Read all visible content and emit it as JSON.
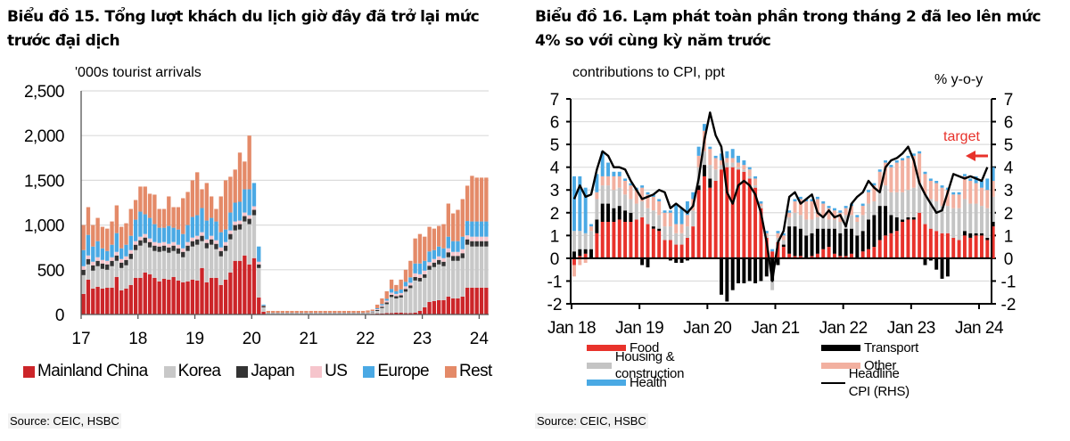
{
  "chart_data": [
    {
      "id": "chart15",
      "type": "bar",
      "stacked": true,
      "title": "Biểu đồ 15. Tổng lượt khách du lịch giờ đây đã trở lại mức trước đại dịch",
      "ylabel": "'000s tourist arrivals",
      "xlabel": "",
      "ylim": [
        0,
        2500
      ],
      "yticks": [
        0,
        500,
        1000,
        1500,
        2000,
        2500
      ],
      "ytick_labels": [
        "0",
        "500",
        "1,000",
        "1,500",
        "2,000",
        "2,500"
      ],
      "xtick_labels": [
        "17",
        "18",
        "19",
        "20",
        "21",
        "22",
        "23",
        "24"
      ],
      "grid": true,
      "legend_position": "bottom",
      "frequency": "monthly",
      "start": "2017-01",
      "series_order": [
        "Mainland China",
        "Korea",
        "Japan",
        "US",
        "Europe",
        "Rest"
      ],
      "colors": {
        "Mainland China": "#cc2529",
        "Korea": "#c8c8c8",
        "Japan": "#333333",
        "US": "#f6c5cc",
        "Europe": "#4aa9e4",
        "Rest": "#e48a68"
      },
      "totals": [
        1000,
        1200,
        1000,
        1080,
        980,
        960,
        1040,
        1220,
        980,
        1020,
        1180,
        1280,
        1430,
        1430,
        1350,
        1340,
        1180,
        1180,
        1320,
        1200,
        1200,
        1300,
        1370,
        1500,
        1590,
        1400,
        1470,
        1320,
        1180,
        1320,
        1500,
        1540,
        1620,
        1810,
        1710,
        2000,
        1250,
        450,
        60,
        40,
        40,
        40,
        40,
        40,
        40,
        40,
        40,
        40,
        40,
        40,
        40,
        40,
        40,
        40,
        40,
        40,
        40,
        40,
        40,
        40,
        45,
        55,
        110,
        180,
        260,
        390,
        330,
        390,
        500,
        600,
        850,
        900,
        870,
        980,
        960,
        990,
        1010,
        1240,
        1130,
        1170,
        1290,
        1440,
        1550,
        1530,
        1530,
        1530
      ],
      "china": [
        230,
        390,
        290,
        310,
        290,
        300,
        300,
        420,
        270,
        290,
        330,
        410,
        410,
        470,
        450,
        410,
        370,
        400,
        390,
        420,
        380,
        360,
        370,
        390,
        380,
        520,
        360,
        410,
        410,
        330,
        390,
        470,
        600,
        600,
        660,
        560,
        630,
        190,
        30,
        5,
        5,
        5,
        5,
        5,
        5,
        5,
        5,
        5,
        5,
        5,
        5,
        5,
        5,
        5,
        5,
        5,
        5,
        5,
        5,
        5,
        5,
        8,
        10,
        12,
        15,
        15,
        20,
        20,
        15,
        15,
        20,
        40,
        80,
        140,
        150,
        160,
        160,
        200,
        180,
        180,
        200,
        300,
        300,
        300,
        300,
        300
      ],
      "korea": [
        210,
        170,
        200,
        230,
        220,
        200,
        240,
        180,
        250,
        260,
        290,
        310,
        360,
        330,
        300,
        300,
        330,
        310,
        300,
        290,
        300,
        280,
        340,
        370,
        400,
        300,
        380,
        370,
        320,
        320,
        320,
        370,
        340,
        350,
        380,
        450,
        480,
        330,
        50,
        5,
        5,
        5,
        5,
        5,
        5,
        5,
        5,
        5,
        5,
        5,
        5,
        5,
        5,
        5,
        5,
        5,
        5,
        5,
        5,
        5,
        8,
        15,
        30,
        60,
        100,
        180,
        160,
        170,
        240,
        280,
        360,
        330,
        330,
        360,
        380,
        400,
        380,
        440,
        420,
        420,
        430,
        480,
        460,
        460,
        460,
        460
      ],
      "japan": [
        60,
        60,
        60,
        60,
        60,
        60,
        60,
        60,
        60,
        60,
        60,
        60,
        60,
        60,
        60,
        60,
        60,
        60,
        60,
        60,
        60,
        60,
        60,
        60,
        60,
        60,
        60,
        60,
        60,
        60,
        60,
        60,
        60,
        60,
        60,
        60,
        60,
        40,
        15,
        3,
        3,
        3,
        3,
        3,
        3,
        3,
        3,
        3,
        3,
        3,
        3,
        3,
        3,
        3,
        3,
        3,
        3,
        3,
        3,
        3,
        3,
        5,
        10,
        15,
        20,
        25,
        25,
        25,
        30,
        30,
        40,
        40,
        40,
        45,
        50,
        50,
        50,
        55,
        55,
        55,
        55,
        60,
        60,
        60,
        60,
        60
      ],
      "us": [
        40,
        40,
        40,
        40,
        40,
        40,
        40,
        40,
        40,
        40,
        40,
        40,
        40,
        40,
        40,
        40,
        40,
        40,
        40,
        40,
        40,
        40,
        40,
        40,
        40,
        40,
        40,
        40,
        40,
        40,
        40,
        40,
        40,
        40,
        40,
        40,
        40,
        30,
        5,
        2,
        2,
        2,
        2,
        2,
        2,
        2,
        2,
        2,
        2,
        2,
        2,
        2,
        2,
        2,
        2,
        2,
        2,
        2,
        2,
        2,
        3,
        5,
        10,
        15,
        20,
        25,
        25,
        25,
        30,
        30,
        40,
        40,
        40,
        40,
        40,
        40,
        40,
        45,
        45,
        45,
        45,
        45,
        50,
        50,
        50,
        50
      ],
      "europe": [
        180,
        230,
        170,
        180,
        130,
        110,
        140,
        210,
        120,
        130,
        160,
        240,
        280,
        220,
        230,
        200,
        170,
        160,
        200,
        160,
        170,
        160,
        190,
        230,
        230,
        270,
        210,
        200,
        210,
        170,
        140,
        200,
        210,
        210,
        260,
        290,
        260,
        170,
        10,
        3,
        3,
        3,
        3,
        3,
        3,
        3,
        3,
        3,
        3,
        3,
        3,
        3,
        3,
        3,
        3,
        3,
        3,
        3,
        3,
        3,
        3,
        5,
        10,
        15,
        20,
        40,
        30,
        40,
        50,
        60,
        110,
        120,
        110,
        120,
        100,
        110,
        110,
        130,
        120,
        120,
        140,
        160,
        170,
        170,
        170,
        170
      ],
      "rest": [
        280,
        310,
        240,
        260,
        240,
        250,
        260,
        310,
        240,
        240,
        300,
        230,
        280,
        300,
        220,
        300,
        210,
        210,
        270,
        230,
        250,
        360,
        370,
        410,
        480,
        210,
        420,
        220,
        140,
        380,
        510,
        400,
        370,
        550,
        310,
        600,
        90,
        120,
        10,
        22,
        22,
        22,
        22,
        22,
        22,
        22,
        22,
        22,
        22,
        22,
        22,
        22,
        22,
        22,
        22,
        22,
        22,
        22,
        22,
        22,
        23,
        17,
        40,
        63,
        85,
        105,
        70,
        110,
        135,
        185,
        240,
        330,
        270,
        275,
        240,
        230,
        250,
        370,
        310,
        350,
        420,
        395,
        510,
        490,
        490,
        490
      ]
    },
    {
      "id": "chart16",
      "type": "bar",
      "stacked": true,
      "title": "Biểu đồ 16. Lạm phát toàn phần trong tháng 2 đã leo lên mức 4% so với cùng kỳ năm trước",
      "ylabel": "contributions to CPI, ppt",
      "y2label": "% y-o-y",
      "xlabel": "",
      "ylim": [
        -2,
        7
      ],
      "y2lim": [
        -2,
        7
      ],
      "yticks": [
        -2,
        -1,
        0,
        1,
        2,
        3,
        4,
        5,
        6,
        7
      ],
      "xtick_labels": [
        "Jan 18",
        "Jan 19",
        "Jan 20",
        "Jan 21",
        "Jan 22",
        "Jan 23",
        "Jan 24"
      ],
      "grid": true,
      "legend_position": "bottom",
      "annotation": {
        "text": "target",
        "value": 4.5,
        "color": "#e8322b"
      },
      "frequency": "monthly",
      "start": "2018-01",
      "colors": {
        "Food": "#e8322b",
        "Transport": "#000000",
        "Housing & construction": "#c4c4c4",
        "Other": "#f2b0a0",
        "Health": "#4aa9e4",
        "Headline CPI (RHS)": "#000000"
      },
      "series": [
        {
          "name": "Food",
          "values": [
            -0.3,
            0.1,
            0.2,
            0,
            1.1,
            1.6,
            1.6,
            1.6,
            1.7,
            1.6,
            1.6,
            1.7,
            1.8,
            1.5,
            1.3,
            1.2,
            0.8,
            0.8,
            0.6,
            0.6,
            0.9,
            1.4,
            3.0,
            3.6,
            3.1,
            3.4,
            3.9,
            4.0,
            4.0,
            3.9,
            3.8,
            3.5,
            3.1,
            2.2,
            0.9,
            0.3,
            0.7,
            0.5,
            0.2,
            0.1,
            0.1,
            0,
            0.1,
            0.2,
            0.4,
            0.5,
            0.2,
            0.1,
            0.1,
            0.2,
            0,
            0.3,
            0.4,
            0.5,
            0.8,
            1.0,
            1.1,
            1.2,
            1.6,
            1.7,
            1.7,
            2.0,
            1.5,
            1.3,
            1.2,
            1.1,
            1.1,
            0.9,
            0.8,
            1.0,
            0.9,
            1.0,
            1.0,
            0.8,
            1.4
          ]
        },
        {
          "name": "Transport",
          "values": [
            0.3,
            0.3,
            0.2,
            0.4,
            0.6,
            0.8,
            0.8,
            0.6,
            0.6,
            0.5,
            0.4,
            0,
            -0.3,
            -0.4,
            0.1,
            0.1,
            0,
            -0.1,
            -0.2,
            -0.2,
            -0.1,
            0,
            0.2,
            0.5,
            0.4,
            0,
            -1.6,
            -1.9,
            -1.4,
            -1.1,
            -1.1,
            -1.0,
            -1.1,
            -1.0,
            -0.8,
            -1.0,
            -0.3,
            0.1,
            1.2,
            1.3,
            1.2,
            1.0,
            1.0,
            1.1,
            0.9,
            0.8,
            1.1,
            1.0,
            1.2,
            1.1,
            1.0,
            0.9,
            1.3,
            1.4,
            1.5,
            1.3,
            0.8,
            0.6,
            0.1,
            0.1,
            0.1,
            0,
            -0.3,
            -0.1,
            -0.5,
            -0.9,
            -0.8,
            0,
            0,
            0.2,
            0.2,
            0.1,
            0.1,
            0.1,
            0.2
          ]
        },
        {
          "name": "Housing & construction",
          "values": [
            0.9,
            0.8,
            0.7,
            0.8,
            0.9,
            0.8,
            0.8,
            0.8,
            0.8,
            0.7,
            0.6,
            0.7,
            0.7,
            0.7,
            0.7,
            0.6,
            0.6,
            0.6,
            0.5,
            0.5,
            0.5,
            0.7,
            0.8,
            0.6,
            0.6,
            0.5,
            0.2,
            0.2,
            0.2,
            0.1,
            0.1,
            0.1,
            0.1,
            0.1,
            0.1,
            -0.4,
            0.2,
            0.2,
            0.4,
            0.6,
            0.6,
            0.7,
            0.6,
            0.5,
            0.5,
            0.4,
            0.4,
            0.5,
            0.6,
            0.6,
            0.6,
            0.7,
            0.7,
            0.6,
            0.7,
            0.9,
            1.0,
            1.1,
            1.2,
            1.2,
            1.3,
            1.3,
            1.3,
            1.3,
            1.3,
            1.2,
            1.2,
            1.3,
            1.4,
            1.4,
            1.3,
            1.3,
            1.2,
            1.3,
            1.1
          ]
        },
        {
          "name": "Other",
          "values": [
            -0.5,
            -0.3,
            -0.2,
            0.2,
            0.3,
            0.4,
            0.4,
            0.6,
            0.5,
            0.6,
            0.6,
            0.6,
            0.6,
            0.6,
            0.6,
            0.6,
            0.6,
            0.6,
            0.4,
            0.4,
            0.5,
            0.5,
            0.5,
            0.9,
            0.7,
            0.5,
            0.2,
            0.2,
            0.2,
            0.2,
            0.2,
            0.3,
            0.3,
            0.1,
            0.1,
            0,
            0.2,
            0.2,
            0.2,
            0.5,
            0.7,
            0.8,
            0.8,
            0.8,
            0.6,
            0.5,
            0.4,
            0.4,
            0.3,
            0.4,
            0.2,
            0.4,
            0.5,
            0.7,
            0.8,
            1.0,
            1.1,
            1.3,
            1.4,
            1.4,
            1.4,
            1.3,
            0.9,
            0.8,
            0.8,
            0.8,
            0.7,
            0.6,
            0.6,
            1.0,
            1.0,
            0.9,
            0.8,
            0.8,
            0.7
          ]
        },
        {
          "name": "Health",
          "values": [
            2.4,
            2.4,
            2.0,
            0.1,
            0.8,
            1.1,
            0.6,
            0.2,
            0.2,
            0.1,
            0.1,
            0.1,
            0.1,
            0.1,
            0.1,
            0.1,
            0.1,
            0.1,
            0.9,
            0.7,
            0.6,
            0.3,
            0.4,
            0.3,
            0.1,
            0.1,
            0.3,
            0.3,
            0.4,
            0.3,
            0.2,
            0.1,
            0.1,
            0.1,
            0.1,
            0.1,
            0.1,
            0.1,
            0.1,
            0.1,
            0.1,
            0.1,
            0.1,
            0.1,
            0.1,
            0.1,
            0.1,
            0.1,
            0.1,
            0.1,
            0.1,
            0.1,
            0.1,
            0.1,
            0.1,
            0.1,
            0.1,
            0.1,
            0.1,
            0.1,
            0.1,
            0.1,
            0.1,
            0.1,
            0.1,
            0.1,
            0.1,
            0.1,
            0.1,
            0.1,
            0.1,
            0.3,
            0.3,
            0.5,
            0.6
          ]
        },
        {
          "name": "Headline CPI (RHS)",
          "type": "line",
          "values": [
            2.6,
            3.2,
            2.7,
            2.8,
            3.9,
            4.7,
            4.5,
            4.0,
            4.0,
            3.9,
            3.4,
            3.0,
            2.6,
            2.7,
            2.8,
            3.0,
            2.9,
            2.2,
            2.4,
            2.2,
            2.0,
            2.3,
            3.5,
            5.2,
            6.4,
            5.4,
            4.9,
            2.9,
            2.4,
            3.2,
            3.4,
            3.2,
            2.8,
            2.0,
            0.7,
            -1.0,
            0.7,
            1.2,
            2.7,
            2.9,
            2.4,
            2.6,
            2.8,
            2.0,
            1.8,
            2.1,
            1.8,
            1.9,
            1.4,
            2.4,
            2.7,
            2.9,
            3.4,
            3.1,
            2.9,
            4.0,
            4.3,
            4.4,
            4.6,
            4.9,
            4.3,
            3.3,
            2.8,
            2.4,
            2.0,
            2.1,
            2.9,
            3.7,
            3.6,
            3.5,
            3.6,
            3.5,
            3.4,
            4.0
          ]
        }
      ]
    }
  ],
  "legend1": [
    {
      "label": "Mainland China",
      "color": "#cc2529"
    },
    {
      "label": "Korea",
      "color": "#c8c8c8"
    },
    {
      "label": "Japan",
      "color": "#333333"
    },
    {
      "label": "US",
      "color": "#f6c5cc"
    },
    {
      "label": "Europe",
      "color": "#4aa9e4"
    },
    {
      "label": "Rest",
      "color": "#e48a68"
    }
  ],
  "legend2": [
    {
      "label": "Food",
      "color": "#e8322b"
    },
    {
      "label": "Housing & construction",
      "color": "#c4c4c4"
    },
    {
      "label": "Health",
      "color": "#4aa9e4"
    },
    {
      "label": "Transport",
      "color": "#000000"
    },
    {
      "label": "Other",
      "color": "#f2b0a0"
    },
    {
      "label": "Headline CPI (RHS)",
      "color": "#000000"
    }
  ],
  "titles": {
    "chart15": "Biểu đồ 15. Tổng lượt khách du lịch giờ đây đã trở lại mức trước đại dịch",
    "chart16": "Biểu đồ 16. Lạm phát toàn phần trong tháng 2 đã leo lên mức 4% so với cùng kỳ năm trước"
  },
  "labels": {
    "ylabel1": "'000s tourist arrivals",
    "ylabel2": "contributions to CPI, ppt",
    "y2label2": "% y-o-y",
    "target": "target"
  },
  "sources": {
    "chart15": "Source: CEIC, HSBC",
    "chart16": "Source: CEIC, HSBC"
  }
}
